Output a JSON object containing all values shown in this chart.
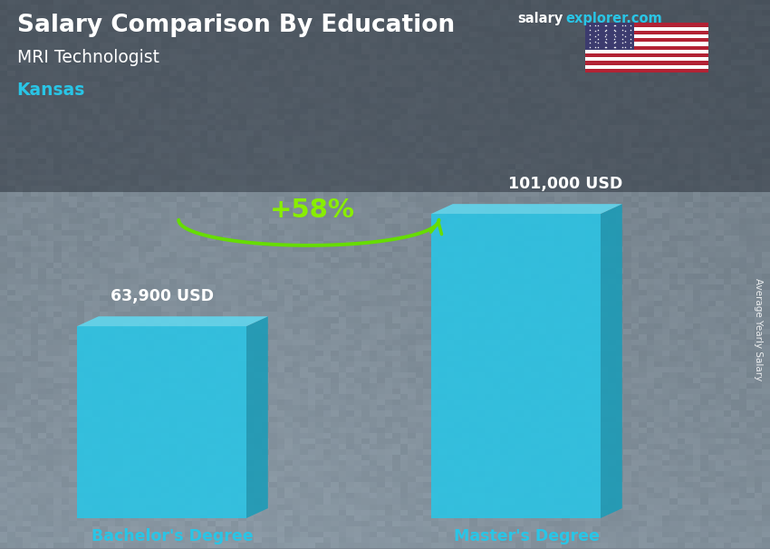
{
  "title": "Salary Comparison By Education",
  "subtitle": "MRI Technologist",
  "location": "Kansas",
  "categories": [
    "Bachelor's Degree",
    "Master's Degree"
  ],
  "values": [
    63900,
    101000
  ],
  "value_labels": [
    "63,900 USD",
    "101,000 USD"
  ],
  "bar_color_face": "#29c5e6",
  "bar_color_side": "#1a9cb8",
  "bar_color_top": "#60d8f0",
  "bar_alpha": 0.88,
  "percent_label": "+58%",
  "percent_color": "#88ee00",
  "arrow_color": "#66dd00",
  "title_color": "#ffffff",
  "subtitle_color": "#ffffff",
  "location_color": "#29c5e6",
  "value_label_color": "#ffffff",
  "category_label_color": "#29c5e6",
  "site_salary_color": "#ffffff",
  "site_explorer_color": "#29c5e6",
  "ylabel": "Average Yearly Salary",
  "bg_color": "#7a8490",
  "overlay_color": "#3a4050",
  "overlay_alpha": 0.3
}
